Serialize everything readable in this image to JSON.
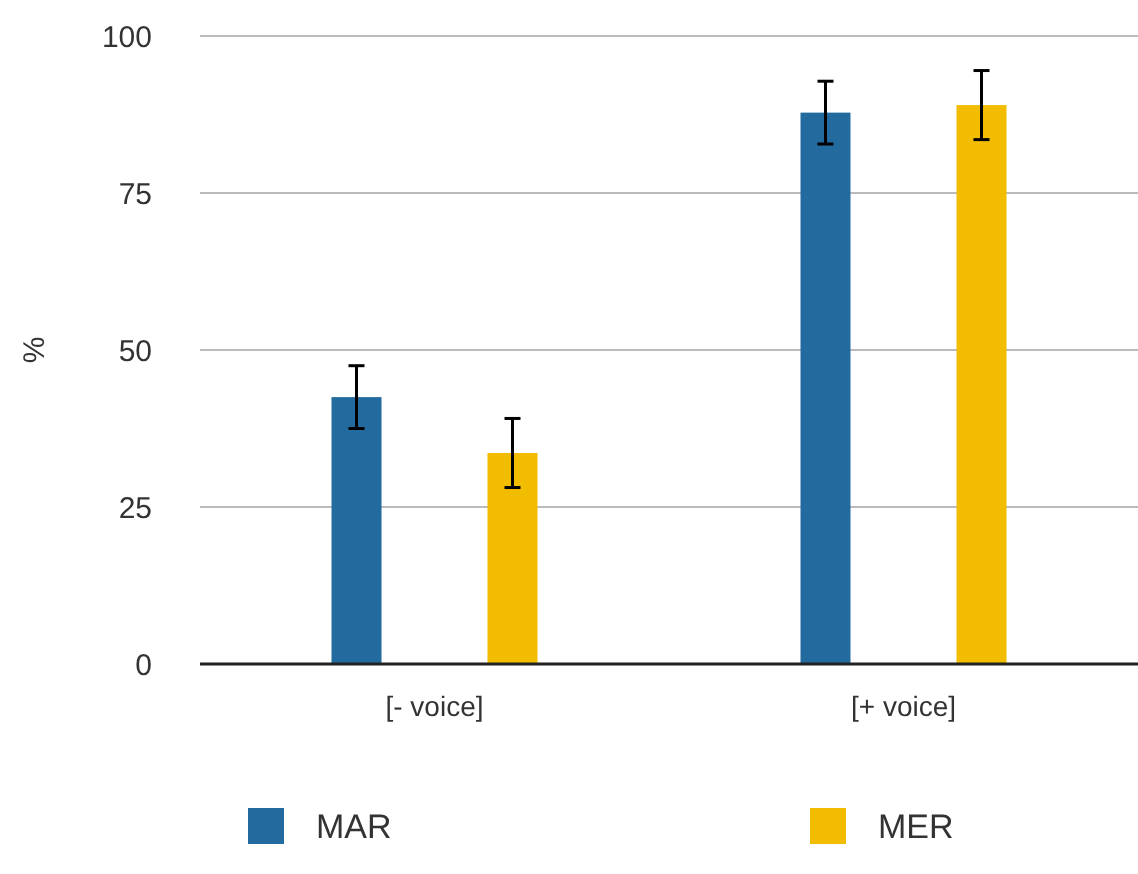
{
  "chart_data": {
    "type": "bar",
    "ylabel": "%",
    "categories": [
      "[- voice]",
      "[+ voice]"
    ],
    "series": [
      {
        "name": "MAR",
        "color": "#236b9e",
        "values": [
          42.5,
          87.8
        ],
        "errors": [
          5,
          5
        ]
      },
      {
        "name": "MER",
        "color": "#f2bc00",
        "values": [
          33.6,
          89
        ],
        "errors": [
          5.5,
          5.5
        ]
      }
    ],
    "ylim": [
      0,
      100
    ],
    "yticks": [
      0,
      25,
      50,
      75,
      100
    ],
    "grid": "y",
    "legend": "bottom"
  }
}
